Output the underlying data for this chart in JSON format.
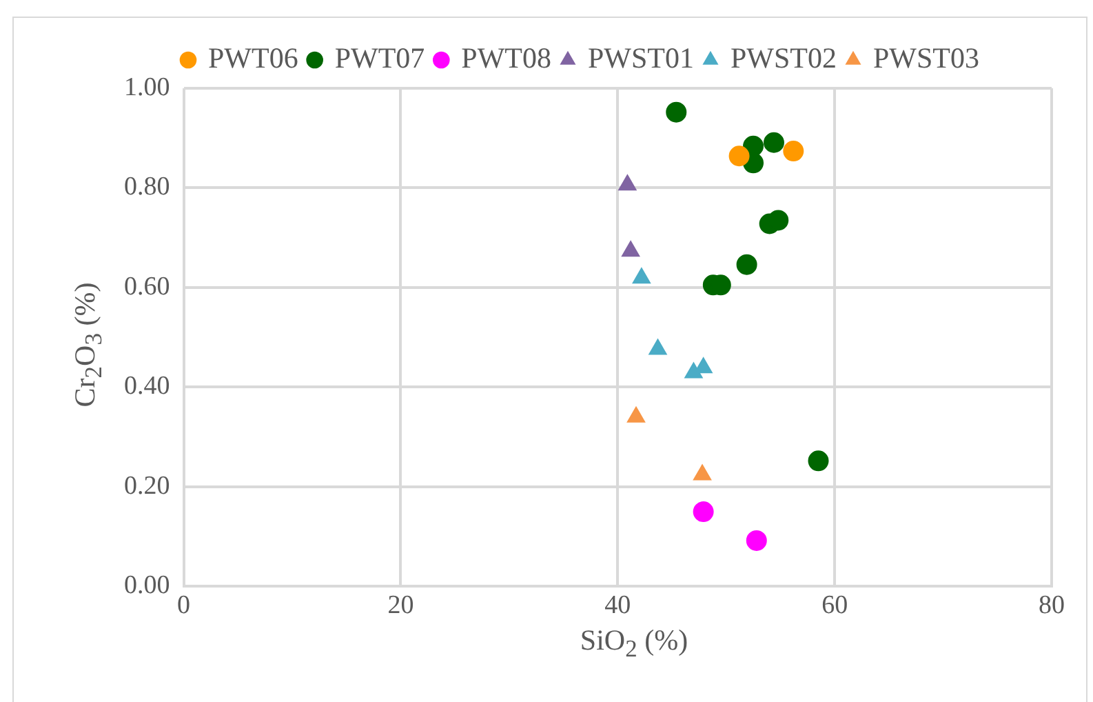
{
  "chart_data": {
    "type": "scatter",
    "xlabel": "SiO$_{2}$ (%)",
    "ylabel": "Cr$_{2}$O$_{3}$ (%)",
    "xlim": [
      0,
      80
    ],
    "xticks": [
      0,
      20,
      40,
      60,
      80
    ],
    "ylim": [
      0,
      1
    ],
    "yticks": [
      {
        "value": 0,
        "label": "0.00"
      },
      {
        "value": 0.2,
        "label": "0.20"
      },
      {
        "value": 0.4,
        "label": "0.40"
      },
      {
        "value": 0.6,
        "label": "0.60"
      },
      {
        "value": 0.8,
        "label": "0.80"
      },
      {
        "value": 1,
        "label": "1.00"
      }
    ],
    "grid": true,
    "legend": "top",
    "series": [
      {
        "name": "PWT06",
        "color": "#ff9900",
        "marker": "circle",
        "x": [
          51.2,
          56.2
        ],
        "values": [
          0.864,
          0.874
        ]
      },
      {
        "name": "PWT07",
        "color": "#006600",
        "marker": "circle",
        "x": [
          45.4,
          52.5,
          54.4,
          52.5,
          54.0,
          54.8,
          51.9,
          48.8,
          49.5,
          58.5
        ],
        "values": [
          0.952,
          0.884,
          0.891,
          0.85,
          0.728,
          0.735,
          0.646,
          0.605,
          0.605,
          0.252
        ]
      },
      {
        "name": "PWT08",
        "color": "#ff00ff",
        "marker": "circle",
        "x": [
          47.9,
          52.8
        ],
        "values": [
          0.15,
          0.092
        ]
      },
      {
        "name": "PWST01",
        "color": "#8064a2",
        "marker": "triangle",
        "x": [
          40.9,
          41.2
        ],
        "values": [
          0.806,
          0.673
        ]
      },
      {
        "name": "PWST02",
        "color": "#4bacc6",
        "marker": "triangle",
        "x": [
          42.2,
          43.7,
          47.0,
          47.9
        ],
        "values": [
          0.619,
          0.476,
          0.429,
          0.439
        ]
      },
      {
        "name": "PWST03",
        "color": "#f79646",
        "marker": "triangle",
        "x": [
          41.7,
          47.8
        ],
        "values": [
          0.34,
          0.224
        ]
      }
    ]
  }
}
